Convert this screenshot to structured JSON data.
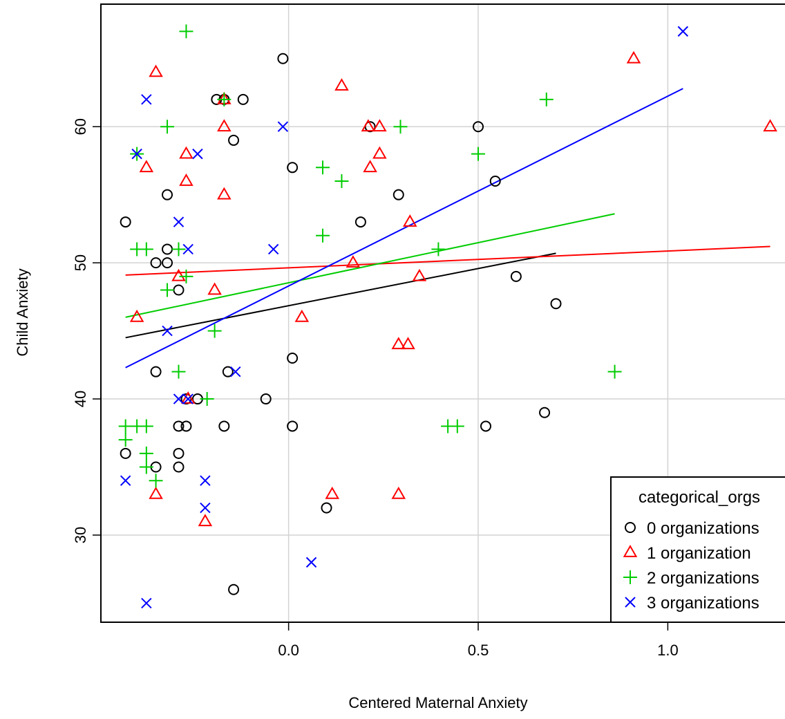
{
  "chart_data": {
    "type": "scatter",
    "xlabel": "Centered Maternal Anxiety",
    "ylabel": "Child Anxiety",
    "xlim": [
      -0.495,
      1.32
    ],
    "ylim": [
      23.6,
      69
    ],
    "x_ticks": [
      0.0,
      0.5,
      1.0
    ],
    "x_tick_labels": [
      "0.0",
      "0.5",
      "1.0"
    ],
    "y_ticks": [
      30,
      40,
      50,
      60
    ],
    "y_tick_labels": [
      "30",
      "40",
      "50",
      "60"
    ],
    "grid": true,
    "legend": {
      "title": "categorical_orgs",
      "position": "bottom-right",
      "entries": [
        "0 organizations",
        "1 organization",
        "2 organizations",
        "3 organizations"
      ]
    },
    "series": [
      {
        "name": "0 organizations",
        "marker": "circle",
        "color": "#000000",
        "points": [
          [
            -0.43,
            53
          ],
          [
            -0.43,
            36
          ],
          [
            -0.35,
            42
          ],
          [
            -0.35,
            50
          ],
          [
            -0.35,
            35
          ],
          [
            -0.32,
            55
          ],
          [
            -0.32,
            51
          ],
          [
            -0.32,
            50
          ],
          [
            -0.29,
            48
          ],
          [
            -0.29,
            38
          ],
          [
            -0.29,
            36
          ],
          [
            -0.29,
            35
          ],
          [
            -0.27,
            40
          ],
          [
            -0.27,
            38
          ],
          [
            -0.24,
            40
          ],
          [
            -0.19,
            62
          ],
          [
            -0.17,
            62
          ],
          [
            -0.17,
            38
          ],
          [
            -0.16,
            42
          ],
          [
            -0.145,
            59
          ],
          [
            -0.145,
            26
          ],
          [
            -0.12,
            62
          ],
          [
            -0.06,
            40
          ],
          [
            -0.015,
            65
          ],
          [
            0.01,
            57
          ],
          [
            0.01,
            43
          ],
          [
            0.01,
            38
          ],
          [
            0.1,
            32
          ],
          [
            0.19,
            53
          ],
          [
            0.215,
            60
          ],
          [
            0.29,
            55
          ],
          [
            0.5,
            60
          ],
          [
            0.52,
            38
          ],
          [
            0.545,
            56
          ],
          [
            0.6,
            49
          ],
          [
            0.675,
            39
          ],
          [
            0.705,
            47
          ]
        ],
        "fit": {
          "x": [
            -0.43,
            0.705
          ],
          "y": [
            44.5,
            50.7
          ]
        }
      },
      {
        "name": "1 organization",
        "marker": "triangle",
        "color": "#ff0000",
        "points": [
          [
            -0.4,
            46
          ],
          [
            -0.35,
            64
          ],
          [
            -0.35,
            33
          ],
          [
            -0.375,
            57
          ],
          [
            -0.29,
            49
          ],
          [
            -0.27,
            58
          ],
          [
            -0.27,
            56
          ],
          [
            -0.265,
            40
          ],
          [
            -0.22,
            31
          ],
          [
            -0.195,
            48
          ],
          [
            -0.17,
            60
          ],
          [
            -0.17,
            55
          ],
          [
            -0.17,
            62
          ],
          [
            0.035,
            46
          ],
          [
            0.115,
            33
          ],
          [
            0.14,
            63
          ],
          [
            0.17,
            50
          ],
          [
            0.21,
            60
          ],
          [
            0.215,
            57
          ],
          [
            0.24,
            60
          ],
          [
            0.24,
            58
          ],
          [
            0.29,
            44
          ],
          [
            0.29,
            33
          ],
          [
            0.315,
            44
          ],
          [
            0.32,
            53
          ],
          [
            0.345,
            49
          ],
          [
            0.91,
            65
          ],
          [
            1.27,
            60
          ]
        ],
        "fit": {
          "x": [
            -0.43,
            1.27
          ],
          "y": [
            49.1,
            51.2
          ]
        }
      },
      {
        "name": "2 organizations",
        "marker": "plus",
        "color": "#00cc00",
        "points": [
          [
            -0.43,
            38
          ],
          [
            -0.43,
            37
          ],
          [
            -0.4,
            51
          ],
          [
            -0.4,
            38
          ],
          [
            -0.4,
            58
          ],
          [
            -0.375,
            51
          ],
          [
            -0.375,
            38
          ],
          [
            -0.375,
            36
          ],
          [
            -0.375,
            35
          ],
          [
            -0.35,
            34
          ],
          [
            -0.32,
            60
          ],
          [
            -0.32,
            48
          ],
          [
            -0.29,
            51
          ],
          [
            -0.29,
            42
          ],
          [
            -0.27,
            67
          ],
          [
            -0.27,
            49
          ],
          [
            -0.215,
            40
          ],
          [
            -0.195,
            45
          ],
          [
            -0.17,
            62
          ],
          [
            0.09,
            57
          ],
          [
            0.09,
            52
          ],
          [
            0.14,
            56
          ],
          [
            0.295,
            60
          ],
          [
            0.395,
            51
          ],
          [
            0.42,
            38
          ],
          [
            0.445,
            38
          ],
          [
            0.5,
            58
          ],
          [
            0.68,
            62
          ],
          [
            0.86,
            42
          ]
        ],
        "fit": {
          "x": [
            -0.43,
            0.86
          ],
          "y": [
            46.0,
            53.6
          ]
        }
      },
      {
        "name": "3 organizations",
        "marker": "x",
        "color": "#0000ff",
        "points": [
          [
            -0.43,
            34
          ],
          [
            -0.4,
            58
          ],
          [
            -0.375,
            62
          ],
          [
            -0.375,
            25
          ],
          [
            -0.32,
            45
          ],
          [
            -0.29,
            53
          ],
          [
            -0.29,
            40
          ],
          [
            -0.265,
            51
          ],
          [
            -0.265,
            40
          ],
          [
            -0.24,
            58
          ],
          [
            -0.22,
            34
          ],
          [
            -0.22,
            32
          ],
          [
            -0.14,
            42
          ],
          [
            -0.04,
            51
          ],
          [
            -0.015,
            60
          ],
          [
            0.06,
            28
          ],
          [
            1.04,
            67
          ]
        ],
        "fit": {
          "x": [
            -0.43,
            1.04
          ],
          "y": [
            42.3,
            62.8
          ]
        }
      }
    ]
  }
}
